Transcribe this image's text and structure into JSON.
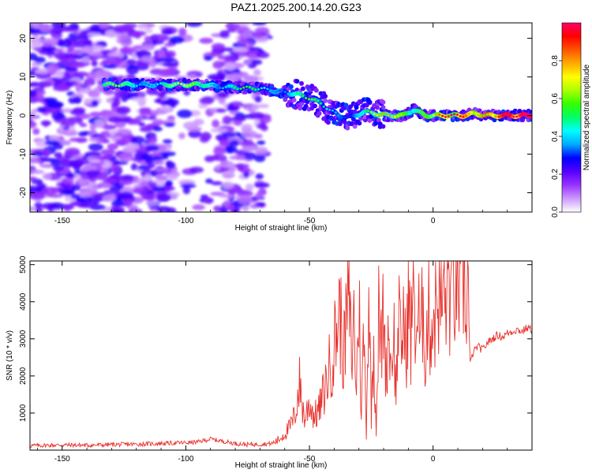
{
  "figure": {
    "title": "PAZ1.2025.200.14.20.G23"
  },
  "chart_data": [
    {
      "type": "heatmap",
      "title": "PAZ1.2025.200.14.20.G23",
      "xlabel": "Height of straight line (km)",
      "ylabel": "Frequency (Hz)",
      "xlim": [
        -163,
        40
      ],
      "ylim": [
        -25,
        24
      ],
      "x_ticks": [
        -150,
        -100,
        -50,
        0
      ],
      "x_tick_labels": [
        "-150",
        "-100",
        "-50",
        "0"
      ],
      "y_ticks": [
        -20,
        -10,
        0,
        10,
        20
      ],
      "y_tick_labels": [
        "-20",
        "-10",
        "0",
        "10",
        "20"
      ],
      "grid": false,
      "colorbar": {
        "label": "Normalized spectral amplitude",
        "range": [
          0,
          1
        ],
        "ticks": [
          0.0,
          0.2,
          0.4,
          0.6,
          0.8
        ],
        "tick_labels": [
          "0.0",
          "0.2",
          "0.4",
          "0.6",
          "0.8"
        ],
        "colormap": [
          "#ffffff",
          "#cc99ff",
          "#9933ff",
          "#5500ff",
          "#0000ff",
          "#00aaff",
          "#00ffff",
          "#00ff66",
          "#33ff00",
          "#aaff00",
          "#ffff00",
          "#ffaa00",
          "#ff5500",
          "#ff0000",
          "#ff0066"
        ]
      },
      "ridge": {
        "note_free": true,
        "x": [
          -133,
          -125,
          -115,
          -105,
          -98,
          -92,
          -88,
          -70,
          -60,
          -55,
          -50,
          -45,
          -42,
          -38,
          -33,
          -28,
          -23,
          -18,
          -12,
          -8,
          -3,
          2,
          7,
          12,
          17,
          22,
          27,
          32,
          40
        ],
        "frequency": [
          8,
          8,
          8,
          8,
          8,
          8,
          7.5,
          7,
          6,
          5.5,
          4.5,
          3,
          1.5,
          0,
          -0.5,
          1,
          0.5,
          0,
          0,
          1.5,
          0,
          0,
          0,
          0,
          0.5,
          0,
          0,
          0,
          0
        ],
        "amplitude": [
          0.35,
          0.4,
          0.35,
          0.4,
          0.45,
          0.5,
          0.35,
          0.3,
          0.35,
          0.4,
          0.35,
          0.3,
          0.25,
          0.3,
          0.3,
          0.4,
          0.45,
          0.5,
          0.55,
          0.5,
          0.55,
          0.6,
          0.65,
          0.7,
          0.75,
          0.8,
          0.85,
          0.9,
          0.95
        ]
      }
    },
    {
      "type": "line",
      "xlabel": "Height of straight line (km)",
      "ylabel": "SNR (10 * v/v)",
      "xlim": [
        -163,
        40
      ],
      "ylim": [
        0,
        5100
      ],
      "x_ticks": [
        -150,
        -100,
        -50,
        0
      ],
      "x_tick_labels": [
        "-150",
        "-100",
        "-50",
        "0"
      ],
      "y_ticks": [
        1000,
        2000,
        3000,
        4000,
        5000
      ],
      "y_tick_labels": [
        "1000",
        "2000",
        "3000",
        "4000",
        "5000"
      ],
      "grid": false,
      "line_color": "#e8332e",
      "series": [
        {
          "x": [
            -163,
            -150,
            -140,
            -130,
            -120,
            -110,
            -100,
            -95,
            -90,
            -85,
            -80,
            -75,
            -70,
            -65,
            -62,
            -60,
            -58,
            -56,
            -54,
            -52,
            -50,
            -48,
            -46,
            -44,
            -42,
            -40,
            -38,
            -36,
            -34,
            -33,
            -32,
            -31,
            -30,
            -29,
            -28,
            -27,
            -26,
            -25,
            -24,
            -23,
            -22,
            -21,
            -20,
            -19,
            -18,
            -17,
            -16,
            -15,
            -14,
            -13,
            -12,
            -11,
            -10,
            -9,
            -8,
            -7,
            -6,
            -5,
            -4,
            -3,
            -2,
            -1,
            0,
            1,
            2,
            3,
            4,
            5,
            6,
            7,
            8,
            9,
            10,
            11,
            12,
            13,
            14,
            15,
            16,
            18,
            20,
            22,
            24,
            26,
            28,
            30,
            32,
            34,
            36,
            38,
            40
          ],
          "values": [
            120,
            140,
            130,
            150,
            160,
            180,
            200,
            220,
            300,
            240,
            180,
            150,
            160,
            180,
            300,
            450,
            600,
            900,
            1800,
            800,
            1300,
            900,
            1100,
            1600,
            2200,
            2800,
            3800,
            2600,
            4450,
            2400,
            3500,
            1600,
            4200,
            900,
            3300,
            500,
            4450,
            1000,
            2900,
            600,
            3600,
            2700,
            3900,
            2000,
            3400,
            2200,
            3500,
            1400,
            3800,
            2500,
            3700,
            2400,
            4400,
            2800,
            5000,
            3000,
            3800,
            2600,
            4300,
            2300,
            4000,
            3200,
            3600,
            3700,
            4500,
            3800,
            4200,
            4000,
            4800,
            4100,
            4300,
            4500,
            5000,
            4200,
            5100,
            4000,
            4700,
            2300,
            2600,
            2800,
            2700,
            2900,
            3000,
            3100,
            3050,
            3150,
            3200,
            3250,
            3200,
            3300,
            3250
          ]
        }
      ]
    }
  ]
}
